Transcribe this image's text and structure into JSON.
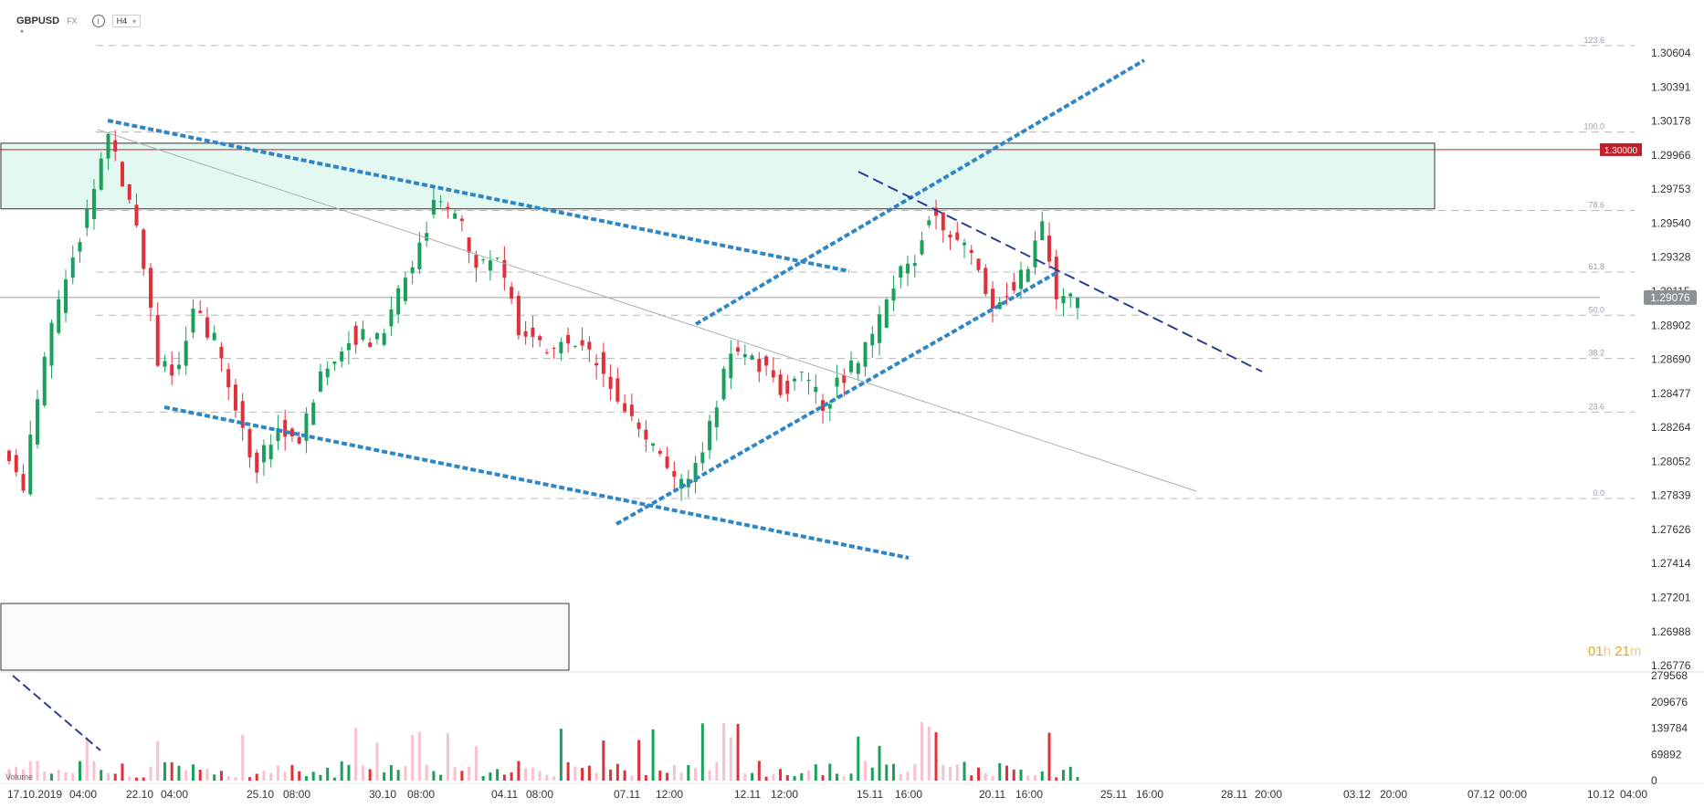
{
  "toolbar": {
    "symbol": "GBPUSD",
    "market": "FX",
    "timeframe": "H4",
    "info_icon": "info-icon",
    "chevron_icon": "chevron-down-icon"
  },
  "timer": {
    "hours": "01",
    "h_unit": "h",
    "minutes": "21",
    "m_unit": "m"
  },
  "volume_legend": "Volume",
  "colors": {
    "up": "#1aa05a",
    "down": "#e0303a",
    "zone_fill": "#e3f8f0",
    "trend_dotted": "#2f86c6",
    "trend_dash": "#2a3f8f",
    "resistance": "#c0202a"
  },
  "chart_data": {
    "type": "candlestick",
    "y_ticks": [
      1.30604,
      1.30391,
      1.30178,
      1.29966,
      1.29753,
      1.2954,
      1.29328,
      1.29115,
      1.28902,
      1.2869,
      1.28477,
      1.28264,
      1.28052,
      1.27839,
      1.27626,
      1.27414,
      1.27201,
      1.26988,
      1.26776
    ],
    "y_tick_labels": [
      "1.30604",
      "1.30391",
      "1.30178",
      "1.29966",
      "1.29753",
      "1.29540",
      "1.29328",
      "1.29115",
      "1.28902",
      "1.28690",
      "1.28477",
      "1.28264",
      "1.28052",
      "1.27839",
      "1.27626",
      "1.27414",
      "1.27201",
      "1.26988",
      "1.26776"
    ],
    "ylim": [
      1.26776,
      1.30604
    ],
    "x_labels": [
      "17.10.2019",
      "04:00",
      "22.10",
      "04:00",
      "25.10",
      "08:00",
      "30.10",
      "08:00",
      "04.11",
      "08:00",
      "07.11",
      "12:00",
      "12.11",
      "12:00",
      "15.11",
      "16:00",
      "20.11",
      "16:00",
      "25.11",
      "16:00",
      "28.11",
      "20:00",
      "03.12",
      "20:00",
      "07.12",
      "00:00",
      "10.12",
      "04:00"
    ],
    "last_price": {
      "value": 1.29076,
      "label": "1.29076"
    },
    "resistance": {
      "value": 1.3,
      "label": "1.30000"
    },
    "fib_levels": [
      {
        "label": "123.6",
        "value": 1.3065
      },
      {
        "label": "100.0",
        "value": 1.3011
      },
      {
        "label": "78.6",
        "value": 1.2962
      },
      {
        "label": "61.8",
        "value": 1.29235
      },
      {
        "label": "50.0",
        "value": 1.28965
      },
      {
        "label": "38.2",
        "value": 1.28695
      },
      {
        "label": "23.6",
        "value": 1.2836
      },
      {
        "label": "0.0",
        "value": 1.2782
      }
    ],
    "supply_zone": [
      1.2963,
      1.3004
    ],
    "volume": {
      "y_ticks": [
        279568,
        209676,
        139784,
        69892,
        0
      ],
      "y_tick_labels": [
        "279568",
        "209676",
        "139784",
        "69892",
        "0"
      ],
      "ylim": [
        0,
        279568
      ]
    },
    "candle_count": 152
  }
}
